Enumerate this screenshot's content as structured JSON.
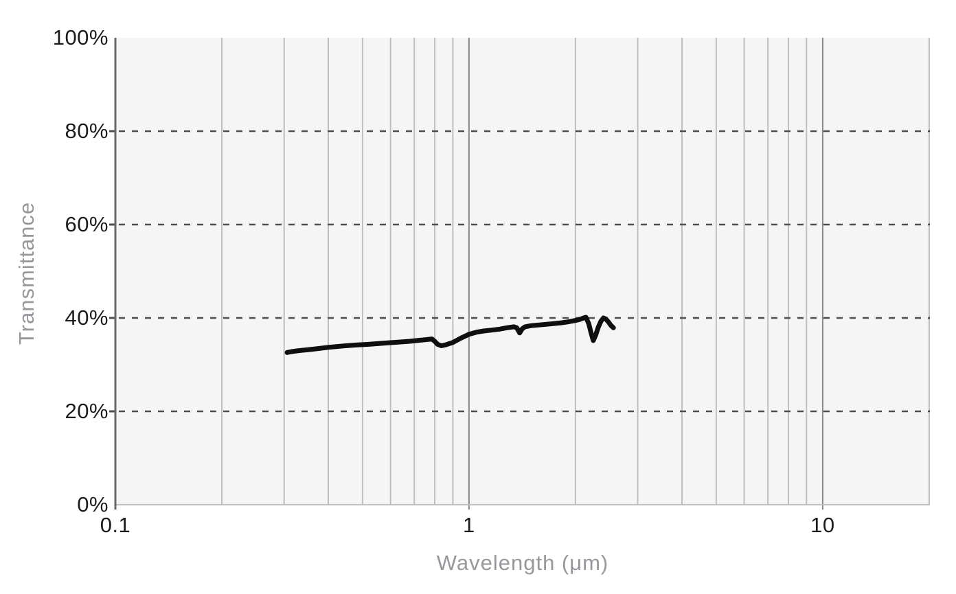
{
  "chart_data": {
    "type": "line",
    "title": "",
    "xlabel": "Wavelength (μm)",
    "ylabel": "Transmittance",
    "legend": "none",
    "grid": "vertical solid log gridlines; horizontal dashed gridlines at 20/40/60/80%",
    "x_axis": {
      "scale": "log",
      "min": 0.1,
      "max": 20.1,
      "ticks": [
        {
          "v": 0.1,
          "label": "0.1"
        },
        {
          "v": 1,
          "label": "1"
        },
        {
          "v": 10,
          "label": "10"
        }
      ],
      "minor_gridlines": [
        0.2,
        0.3,
        0.4,
        0.5,
        0.6,
        0.7,
        0.8,
        0.9,
        2,
        3,
        4,
        5,
        6,
        7,
        8,
        9,
        20
      ],
      "major_gridlines": [
        1,
        10
      ]
    },
    "y_axis": {
      "min": 0,
      "max": 100,
      "ticks": [
        {
          "v": 0,
          "label": "0%"
        },
        {
          "v": 20,
          "label": "20%"
        },
        {
          "v": 40,
          "label": "40%"
        },
        {
          "v": 60,
          "label": "60%"
        },
        {
          "v": 80,
          "label": "80%"
        },
        {
          "v": 100,
          "label": "100%"
        }
      ],
      "dashed_gridlines": [
        20,
        40,
        60,
        80
      ]
    },
    "series": [
      {
        "name": "Transmittance",
        "color": "#0f0f0f",
        "stroke_width": 7,
        "points": [
          [
            0.306,
            32.6
          ],
          [
            0.315,
            32.8
          ],
          [
            0.33,
            33.0
          ],
          [
            0.36,
            33.3
          ],
          [
            0.4,
            33.7
          ],
          [
            0.44,
            34.0
          ],
          [
            0.48,
            34.2
          ],
          [
            0.52,
            34.35
          ],
          [
            0.56,
            34.55
          ],
          [
            0.6,
            34.7
          ],
          [
            0.64,
            34.85
          ],
          [
            0.68,
            35.0
          ],
          [
            0.72,
            35.2
          ],
          [
            0.755,
            35.35
          ],
          [
            0.785,
            35.5
          ],
          [
            0.8,
            35.0
          ],
          [
            0.815,
            34.35
          ],
          [
            0.835,
            34.05
          ],
          [
            0.86,
            34.25
          ],
          [
            0.9,
            34.75
          ],
          [
            0.95,
            35.7
          ],
          [
            1.0,
            36.5
          ],
          [
            1.05,
            36.95
          ],
          [
            1.1,
            37.2
          ],
          [
            1.16,
            37.4
          ],
          [
            1.22,
            37.6
          ],
          [
            1.28,
            37.9
          ],
          [
            1.34,
            38.1
          ],
          [
            1.365,
            37.9
          ],
          [
            1.39,
            36.8
          ],
          [
            1.415,
            37.7
          ],
          [
            1.44,
            38.1
          ],
          [
            1.5,
            38.35
          ],
          [
            1.58,
            38.5
          ],
          [
            1.66,
            38.65
          ],
          [
            1.74,
            38.8
          ],
          [
            1.82,
            38.95
          ],
          [
            1.9,
            39.15
          ],
          [
            1.98,
            39.4
          ],
          [
            2.05,
            39.65
          ],
          [
            2.11,
            40.0
          ],
          [
            2.14,
            40.15
          ],
          [
            2.18,
            38.8
          ],
          [
            2.21,
            37.0
          ],
          [
            2.245,
            35.15
          ],
          [
            2.28,
            36.3
          ],
          [
            2.32,
            38.0
          ],
          [
            2.36,
            39.3
          ],
          [
            2.4,
            40.0
          ],
          [
            2.44,
            39.75
          ],
          [
            2.48,
            39.1
          ],
          [
            2.52,
            38.4
          ],
          [
            2.56,
            37.9
          ]
        ]
      }
    ],
    "colors": {
      "plot_background": "#f5f5f6",
      "grid_minor": "#bfbfc2",
      "grid_major": "#88888b",
      "grid_dashed": "#4e4e51",
      "axis_line": "#67676a",
      "tick_text": "#1c1c1e",
      "axis_title_text": "#97979c",
      "series": "#0f0f0f"
    }
  }
}
